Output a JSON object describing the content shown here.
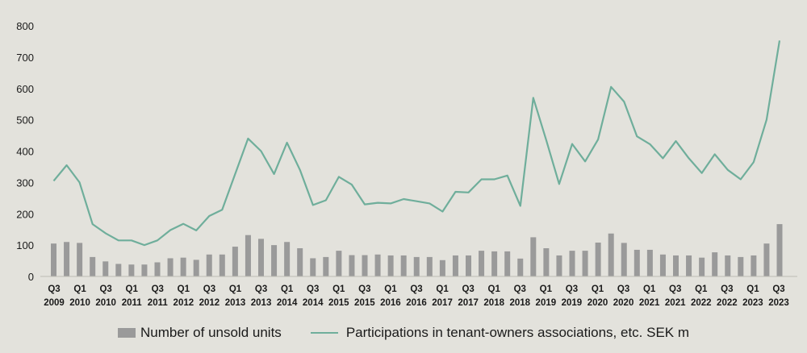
{
  "chart_data": {
    "type": "bar+line",
    "title": "",
    "xlabel": "",
    "ylabel": "",
    "ylim": [
      0,
      800
    ],
    "yticks": [
      0,
      100,
      200,
      300,
      400,
      500,
      600,
      700,
      800
    ],
    "grid": false,
    "legend_position": "bottom",
    "colors": {
      "bars": "#9a9a9a",
      "line": "#6fae9b",
      "background": "#e3e2dc"
    },
    "x_tick_labels": [
      {
        "quarter": "Q3",
        "year": "2009"
      },
      {
        "quarter": "Q1",
        "year": "2010"
      },
      {
        "quarter": "Q3",
        "year": "2010"
      },
      {
        "quarter": "Q1",
        "year": "2011"
      },
      {
        "quarter": "Q3",
        "year": "2011"
      },
      {
        "quarter": "Q1",
        "year": "2012"
      },
      {
        "quarter": "Q3",
        "year": "2012"
      },
      {
        "quarter": "Q1",
        "year": "2013"
      },
      {
        "quarter": "Q3",
        "year": "2013"
      },
      {
        "quarter": "Q1",
        "year": "2014"
      },
      {
        "quarter": "Q3",
        "year": "2014"
      },
      {
        "quarter": "Q1",
        "year": "2015"
      },
      {
        "quarter": "Q3",
        "year": "2015"
      },
      {
        "quarter": "Q1",
        "year": "2016"
      },
      {
        "quarter": "Q3",
        "year": "2016"
      },
      {
        "quarter": "Q1",
        "year": "2017"
      },
      {
        "quarter": "Q3",
        "year": "2017"
      },
      {
        "quarter": "Q1",
        "year": "2018"
      },
      {
        "quarter": "Q3",
        "year": "2018"
      },
      {
        "quarter": "Q1",
        "year": "2019"
      },
      {
        "quarter": "Q3",
        "year": "2019"
      },
      {
        "quarter": "Q1",
        "year": "2020"
      },
      {
        "quarter": "Q3",
        "year": "2020"
      },
      {
        "quarter": "Q1",
        "year": "2021"
      },
      {
        "quarter": "Q3",
        "year": "2021"
      },
      {
        "quarter": "Q1",
        "year": "2022"
      },
      {
        "quarter": "Q3",
        "year": "2022"
      },
      {
        "quarter": "Q1",
        "year": "2023"
      },
      {
        "quarter": "Q3",
        "year": "2023"
      }
    ],
    "series": [
      {
        "name": "Number of unsold units",
        "type": "bar",
        "values": [
          105,
          110,
          107,
          62,
          48,
          40,
          38,
          38,
          45,
          58,
          60,
          53,
          70,
          70,
          95,
          132,
          120,
          100,
          110,
          90,
          58,
          62,
          82,
          68,
          68,
          70,
          67,
          67,
          62,
          62,
          52,
          67,
          67,
          82,
          80,
          80,
          57,
          125,
          90,
          67,
          82,
          82,
          108,
          137,
          107,
          85,
          85,
          70,
          67,
          67,
          60,
          77,
          67,
          62,
          67,
          105,
          167
        ]
      },
      {
        "name": "Participations in tenant-owners associations, etc. SEK m",
        "type": "line",
        "values": [
          305,
          355,
          300,
          167,
          138,
          115,
          115,
          100,
          115,
          148,
          168,
          147,
          193,
          213,
          327,
          440,
          400,
          327,
          427,
          340,
          228,
          243,
          318,
          293,
          230,
          235,
          233,
          247,
          240,
          233,
          207,
          270,
          268,
          310,
          310,
          322,
          225,
          570,
          435,
          295,
          423,
          367,
          437,
          605,
          558,
          447,
          422,
          377,
          432,
          377,
          330,
          390,
          340,
          310,
          365,
          500,
          753
        ]
      }
    ]
  }
}
